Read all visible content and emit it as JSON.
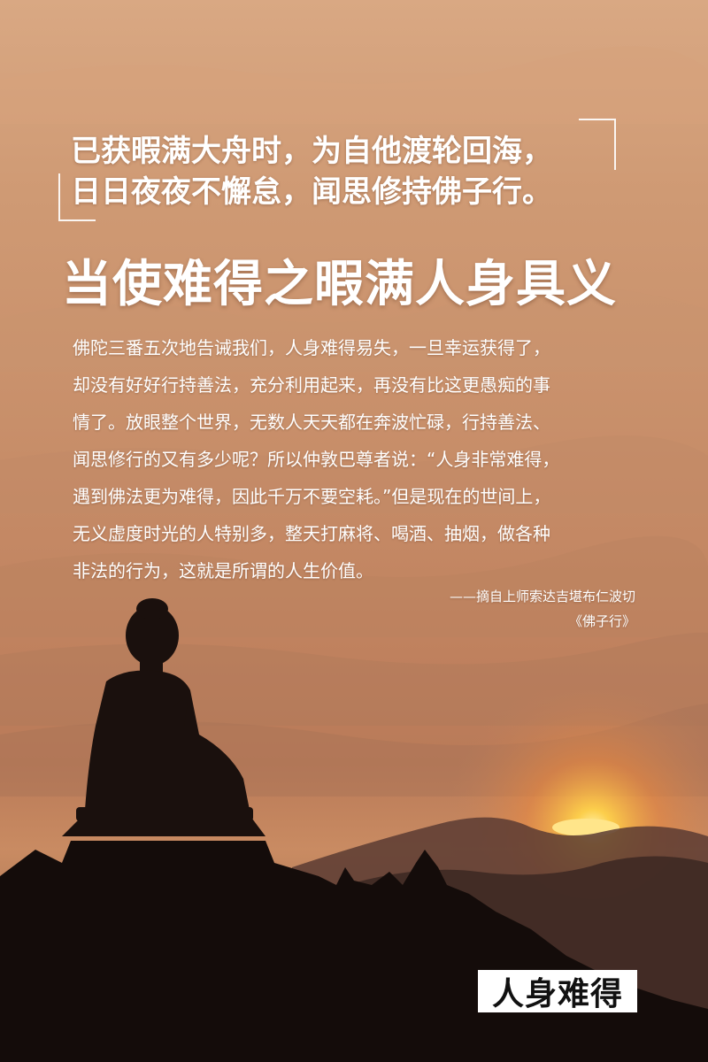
{
  "verse": {
    "line1": "已获暇满大舟时，为自他渡轮回海，",
    "line2": "日日夜夜不懈怠，闻思修持佛子行。"
  },
  "title": "当使难得之暇满人身具义",
  "body": {
    "lines": [
      "佛陀三番五次地告诫我们，人身难得易失，一旦幸运获得了，",
      "却没有好好行持善法，充分利用起来，再没有比这更愚痴的事",
      "情了。放眼整个世界，无数人天天都在奔波忙碌，行持善法、",
      "闻思修行的又有多少呢？所以仲敦巴尊者说：“人身非常难得，",
      "遇到佛法更为难得，因此千万不要空耗。”但是现在的世间上，",
      "无义虚度时光的人特别多，整天打麻将、喝酒、抽烟，做各种",
      "非法的行为，这就是所谓的人生价值。"
    ]
  },
  "attribution": {
    "author": "——摘自上师索达吉堪布仁波切",
    "source": "《佛子行》"
  },
  "stamp": "人身难得",
  "colors": {
    "sky_top": "#d9a883",
    "sun": "#ffd24a",
    "silhouette": "#140c0a"
  }
}
